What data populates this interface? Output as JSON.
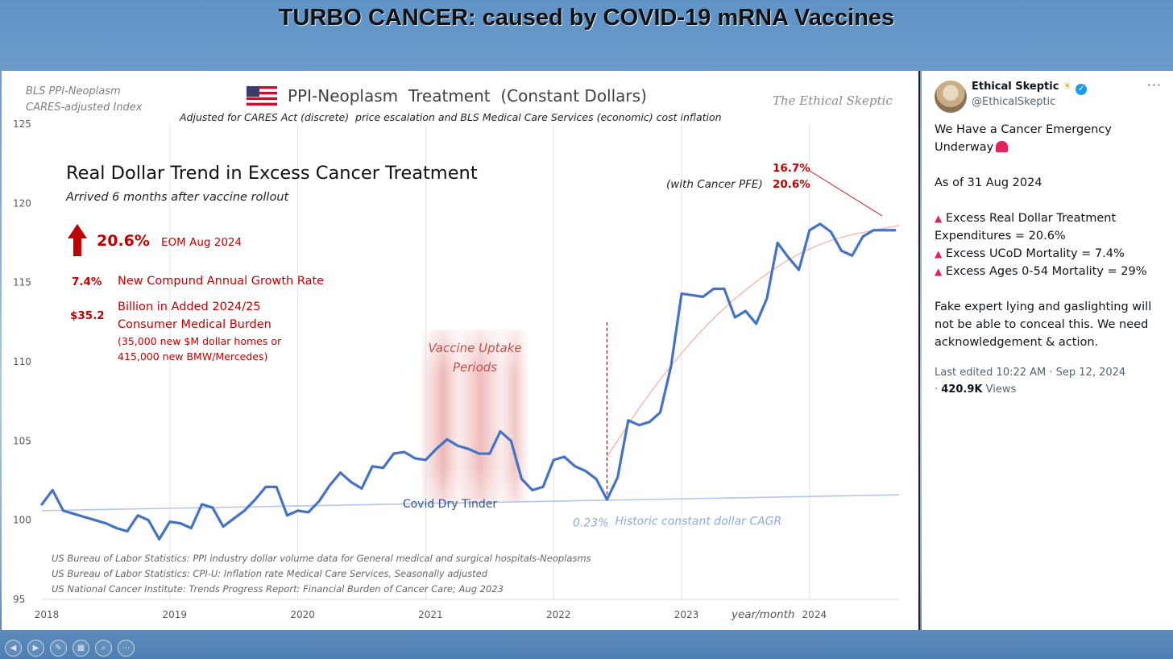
{
  "slide_title": "TURBO CANCER: caused by COVID-19 mRNA Vaccines",
  "colors": {
    "series": "#4472c4",
    "trend": "#b4c7e7",
    "curve": "#f4b9b2",
    "annotation_red": "#c00000",
    "vaccine_band": "#e8a0a0",
    "dashed_marker": "#c00000"
  },
  "chart_data": {
    "type": "line",
    "title": "PPI-Neoplasm  Treatment  (Constant Dollars)",
    "subtitle": "Adjusted for CARES Act (discrete)  price escalation and BLS Medical Care Services (economic) cost inflation",
    "index_label_1": "BLS PPI-Neoplasm",
    "index_label_2": "CARES-adjusted Index",
    "watermark": "The Ethical Skeptic",
    "xlabel": "year/month",
    "ylim": [
      95,
      125
    ],
    "xlim": [
      2018.0,
      2024.7
    ],
    "yticks": [
      95,
      100,
      105,
      110,
      115,
      120,
      125
    ],
    "xticks": [
      {
        "value": 2018,
        "label": "2018"
      },
      {
        "value": 2019,
        "label": "2019"
      },
      {
        "value": 2020,
        "label": "2020"
      },
      {
        "value": 2021,
        "label": "2021"
      },
      {
        "value": 2022,
        "label": "2022"
      },
      {
        "value": 2023,
        "label": "2023"
      },
      {
        "value": 2024,
        "label": "2024"
      }
    ],
    "series": [
      {
        "name": "BLS PPI-Neoplasm CARES-adjusted Index",
        "x": [
          2018.0,
          2018.083,
          2018.167,
          2018.25,
          2018.333,
          2018.417,
          2018.5,
          2018.583,
          2018.667,
          2018.75,
          2018.833,
          2018.917,
          2019.0,
          2019.083,
          2019.167,
          2019.25,
          2019.333,
          2019.417,
          2019.5,
          2019.583,
          2019.667,
          2019.75,
          2019.833,
          2019.917,
          2020.0,
          2020.083,
          2020.167,
          2020.25,
          2020.333,
          2020.417,
          2020.5,
          2020.583,
          2020.667,
          2020.75,
          2020.833,
          2020.917,
          2021.0,
          2021.083,
          2021.167,
          2021.25,
          2021.333,
          2021.417,
          2021.5,
          2021.583,
          2021.667,
          2021.75,
          2021.833,
          2021.917,
          2022.0,
          2022.083,
          2022.167,
          2022.25,
          2022.333,
          2022.417,
          2022.5,
          2022.583,
          2022.667,
          2022.75,
          2022.833,
          2022.917,
          2023.0,
          2023.083,
          2023.167,
          2023.25,
          2023.333,
          2023.417,
          2023.5,
          2023.583,
          2023.667,
          2023.75,
          2023.833,
          2023.917,
          2024.0,
          2024.083,
          2024.167,
          2024.25,
          2024.333,
          2024.417,
          2024.5,
          2024.583,
          2024.667
        ],
        "values": [
          101.0,
          101.9,
          100.6,
          100.4,
          100.2,
          100.0,
          99.8,
          99.5,
          99.3,
          100.3,
          100.0,
          98.8,
          99.9,
          99.8,
          99.5,
          101.0,
          100.8,
          99.6,
          100.1,
          100.6,
          101.3,
          102.1,
          102.1,
          100.3,
          100.6,
          100.5,
          101.2,
          102.2,
          103.0,
          102.4,
          102.0,
          103.4,
          103.3,
          104.2,
          104.3,
          103.9,
          103.8,
          104.5,
          105.1,
          104.7,
          104.5,
          104.2,
          104.2,
          105.6,
          105.0,
          102.6,
          101.9,
          102.1,
          103.8,
          104.0,
          103.4,
          103.1,
          102.6,
          101.3,
          102.7,
          106.3,
          106.0,
          106.2,
          106.8,
          109.7,
          114.3,
          114.2,
          114.1,
          114.6,
          114.6,
          112.8,
          113.2,
          112.4,
          114.0,
          117.5,
          116.6,
          115.8,
          118.3,
          118.7,
          118.2,
          117.0,
          116.7,
          117.9,
          118.3,
          118.3,
          118.3
        ]
      }
    ],
    "trend_line": {
      "label": "Historic constant dollar CAGR",
      "rate_label": "0.23%",
      "x": [
        2018.0,
        2024.7
      ],
      "values": [
        100.6,
        101.6
      ]
    },
    "excess_curve": {
      "x": [
        2022.417,
        2022.7,
        2023.0,
        2023.3,
        2023.6,
        2023.9,
        2024.2,
        2024.5,
        2024.7
      ],
      "values": [
        104.0,
        107.5,
        110.6,
        113.2,
        115.2,
        116.8,
        117.8,
        118.3,
        118.6
      ]
    },
    "vaccine_band": {
      "label_1": "Vaccine Uptake",
      "label_2": "Periods",
      "x_range": [
        2020.97,
        2021.8
      ],
      "y_range": [
        101.1,
        112.0
      ]
    },
    "dashed_marker": {
      "x": 2022.417,
      "y_range": [
        101.3,
        112.5
      ]
    },
    "annotations": {
      "headline": "Real Dollar Trend in Excess Cancer Treatment",
      "headline_sub": "Arrived 6 months after vaccine rollout",
      "pct_value": "20.6%",
      "pct_label": "EOM Aug 2024",
      "cagr_value": "7.4%",
      "cagr_label": "New Compund Annual Growth Rate",
      "burden_value": "$35.2",
      "burden_line1": "Billion in Added 2024/25",
      "burden_line2": "Consumer Medical Burden",
      "burden_line3": "(35,000 new $M dollar homes or",
      "burden_line4": "415,000 new BMW/Mercedes)",
      "pfe_pct_1": "16.7%",
      "pfe_pct_2": "20.6%",
      "pfe_label": "(with Cancer PFE)",
      "dry_tinder": "Covid Dry Tinder"
    },
    "sources": [
      "US Bureau of Labor Statistics: PPI industry dollar volume data for General medical and surgical hospitals-Neoplasms",
      "US Bureau of Labor Statistics: CPI-U: Inflation rate Medical Care Services, Seasonally adjusted",
      "US National Cancer Institute: Trends Progress Report: Financial Burden of Cancer Care; Aug 2023"
    ]
  },
  "tweet": {
    "name": "Ethical Skeptic",
    "handle": "@EthicalSkeptic",
    "more": "···",
    "line1": "We Have a Cancer Emergency",
    "line2": "Underway",
    "date_line": "As of 31 Aug 2024",
    "bullet1a": "Excess Real Dollar Treatment",
    "bullet1b": "Expenditures = 20.6%",
    "bullet2": "Excess UCoD Mortality = 7.4%",
    "bullet3": "Excess Ages 0-54 Mortality = 29%",
    "para": "Fake expert lying and gaslighting will not be able to conceal this. We need acknowledgement & action.",
    "edited": "Last edited 10:22 AM · Sep 12, 2024",
    "views_count": "420.9K",
    "views_label": "Views"
  },
  "toolbar": {
    "buttons": [
      "previous-slide",
      "next-slide",
      "pen-tool",
      "slide-sorter",
      "zoom",
      "more-options"
    ]
  }
}
